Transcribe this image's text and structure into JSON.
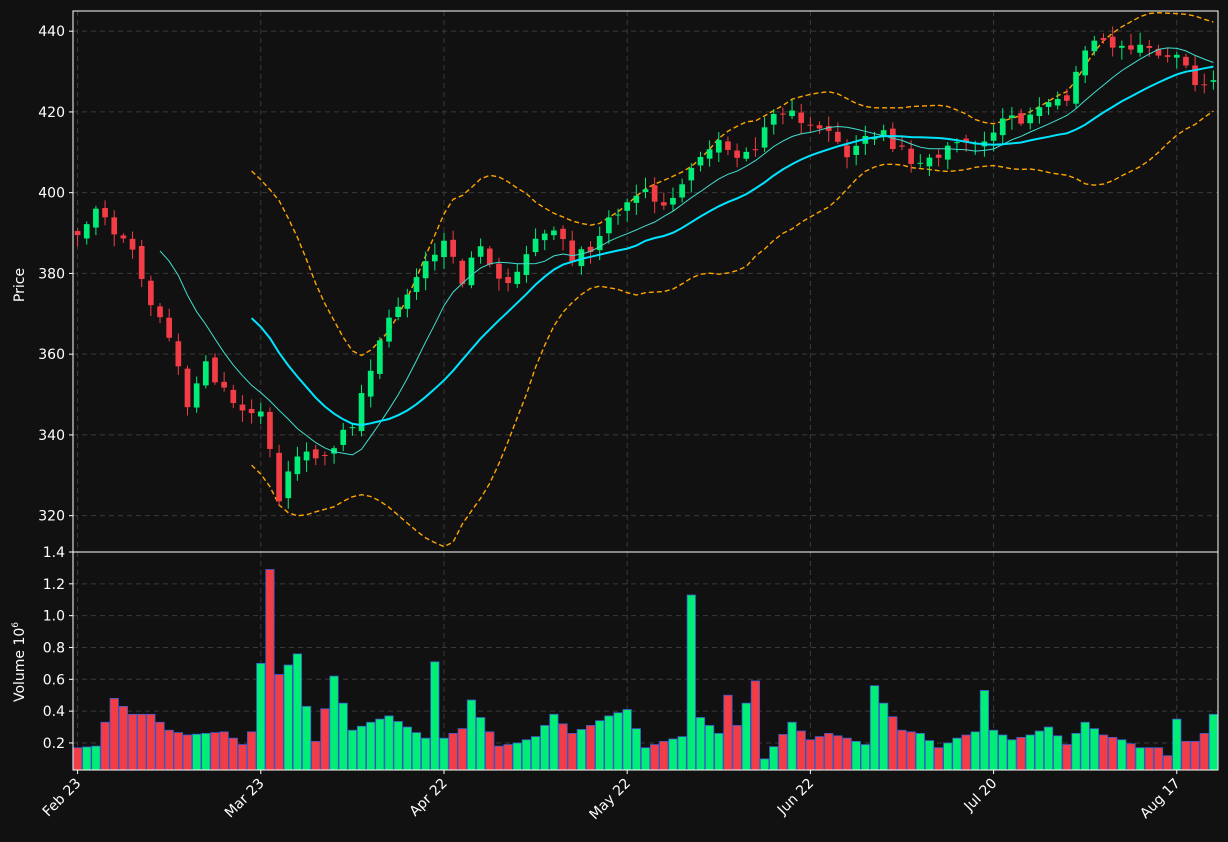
{
  "chart_data": {
    "type": "candlestick",
    "colors": {
      "background": "#111111",
      "grid": "#3a3a3a",
      "up": "#00ee77",
      "down": "#f23c46",
      "ma_fast": "#40e0d0",
      "ma_slow": "#00e5ff",
      "bollinger": "#ffa500",
      "axis": "#ffffff"
    },
    "price_panel": {
      "ylabel": "Price",
      "ylim": [
        311,
        445
      ],
      "yticks": [
        320,
        340,
        360,
        380,
        400,
        420,
        440
      ],
      "grid": true
    },
    "volume_panel": {
      "ylabel": "Volume",
      "ylabel_exponent": "10",
      "ylabel_exponent_power": "6",
      "ylim": [
        0.03,
        1.4
      ],
      "yticks": [
        0.2,
        0.4,
        0.6,
        0.8,
        1.0,
        1.2,
        1.4
      ],
      "ytick_labels": [
        "0.2",
        "0.4",
        "0.6",
        "0.8",
        "1.0",
        "1.2",
        "1.4"
      ],
      "grid": true
    },
    "x_ticks": [
      {
        "index": 0,
        "label": "Feb 23"
      },
      {
        "index": 20,
        "label": "Mar 23"
      },
      {
        "index": 40,
        "label": "Apr 22"
      },
      {
        "index": 60,
        "label": "May 22"
      },
      {
        "index": 80,
        "label": "Jun 22"
      },
      {
        "index": 100,
        "label": "Jul 20"
      },
      {
        "index": 120,
        "label": "Aug 17"
      }
    ],
    "n_bars": 125,
    "price_points": [
      [
        0,
        391
      ],
      [
        2,
        395
      ],
      [
        4,
        391
      ],
      [
        6,
        385
      ],
      [
        8,
        372
      ],
      [
        10,
        364
      ],
      [
        12,
        348
      ],
      [
        14,
        357
      ],
      [
        16,
        352
      ],
      [
        18,
        346
      ],
      [
        20,
        347
      ],
      [
        22,
        325
      ],
      [
        24,
        335
      ],
      [
        26,
        334
      ],
      [
        28,
        338
      ],
      [
        30,
        342
      ],
      [
        32,
        356
      ],
      [
        34,
        369
      ],
      [
        36,
        374
      ],
      [
        38,
        382
      ],
      [
        40,
        389
      ],
      [
        42,
        378
      ],
      [
        44,
        388
      ],
      [
        46,
        378
      ],
      [
        48,
        380
      ],
      [
        50,
        390
      ],
      [
        52,
        392
      ],
      [
        54,
        384
      ],
      [
        56,
        386
      ],
      [
        58,
        394
      ],
      [
        60,
        398
      ],
      [
        62,
        400
      ],
      [
        64,
        396
      ],
      [
        66,
        402
      ],
      [
        68,
        410
      ],
      [
        70,
        413
      ],
      [
        72,
        408
      ],
      [
        74,
        412
      ],
      [
        76,
        418
      ],
      [
        78,
        419
      ],
      [
        80,
        418
      ],
      [
        82,
        416
      ],
      [
        84,
        408
      ],
      [
        86,
        414
      ],
      [
        88,
        414
      ],
      [
        90,
        410
      ],
      [
        92,
        406
      ],
      [
        94,
        410
      ],
      [
        96,
        414
      ],
      [
        98,
        412
      ],
      [
        100,
        416
      ],
      [
        102,
        418
      ],
      [
        104,
        419
      ],
      [
        106,
        422
      ],
      [
        108,
        424
      ],
      [
        110,
        436
      ],
      [
        112,
        438
      ],
      [
        114,
        436
      ],
      [
        116,
        436
      ],
      [
        118,
        435
      ],
      [
        120,
        434
      ],
      [
        122,
        428
      ],
      [
        124,
        428
      ]
    ],
    "volume_points": [
      [
        0,
        0.17
      ],
      [
        2,
        0.18
      ],
      [
        4,
        0.48
      ],
      [
        6,
        0.38
      ],
      [
        8,
        0.38
      ],
      [
        10,
        0.28
      ],
      [
        12,
        0.25
      ],
      [
        14,
        0.26
      ],
      [
        16,
        0.27
      ],
      [
        18,
        0.19
      ],
      [
        19,
        0.27
      ],
      [
        20,
        0.7
      ],
      [
        21,
        1.29
      ],
      [
        22,
        0.63
      ],
      [
        23,
        0.69
      ],
      [
        24,
        0.76
      ],
      [
        25,
        0.43
      ],
      [
        26,
        0.21
      ],
      [
        28,
        0.62
      ],
      [
        30,
        0.28
      ],
      [
        32,
        0.33
      ],
      [
        34,
        0.37
      ],
      [
        36,
        0.3
      ],
      [
        38,
        0.23
      ],
      [
        39,
        0.71
      ],
      [
        40,
        0.23
      ],
      [
        42,
        0.29
      ],
      [
        43,
        0.47
      ],
      [
        44,
        0.36
      ],
      [
        46,
        0.18
      ],
      [
        48,
        0.2
      ],
      [
        50,
        0.24
      ],
      [
        52,
        0.38
      ],
      [
        54,
        0.26
      ],
      [
        56,
        0.31
      ],
      [
        58,
        0.37
      ],
      [
        60,
        0.41
      ],
      [
        62,
        0.17
      ],
      [
        64,
        0.21
      ],
      [
        66,
        0.24
      ],
      [
        67,
        1.13
      ],
      [
        68,
        0.36
      ],
      [
        70,
        0.26
      ],
      [
        71,
        0.5
      ],
      [
        72,
        0.31
      ],
      [
        74,
        0.59
      ],
      [
        75,
        0.1
      ],
      [
        78,
        0.33
      ],
      [
        80,
        0.22
      ],
      [
        82,
        0.26
      ],
      [
        84,
        0.23
      ],
      [
        86,
        0.19
      ],
      [
        87,
        0.56
      ],
      [
        88,
        0.45
      ],
      [
        90,
        0.28
      ],
      [
        92,
        0.26
      ],
      [
        94,
        0.17
      ],
      [
        96,
        0.23
      ],
      [
        98,
        0.27
      ],
      [
        99,
        0.53
      ],
      [
        100,
        0.28
      ],
      [
        102,
        0.22
      ],
      [
        104,
        0.25
      ],
      [
        106,
        0.3
      ],
      [
        108,
        0.19
      ],
      [
        110,
        0.33
      ],
      [
        112,
        0.25
      ],
      [
        114,
        0.22
      ],
      [
        116,
        0.17
      ],
      [
        118,
        0.17
      ],
      [
        119,
        0.12
      ],
      [
        120,
        0.35
      ],
      [
        121,
        0.21
      ],
      [
        122,
        0.21
      ],
      [
        123,
        0.26
      ],
      [
        124,
        0.38
      ]
    ]
  }
}
